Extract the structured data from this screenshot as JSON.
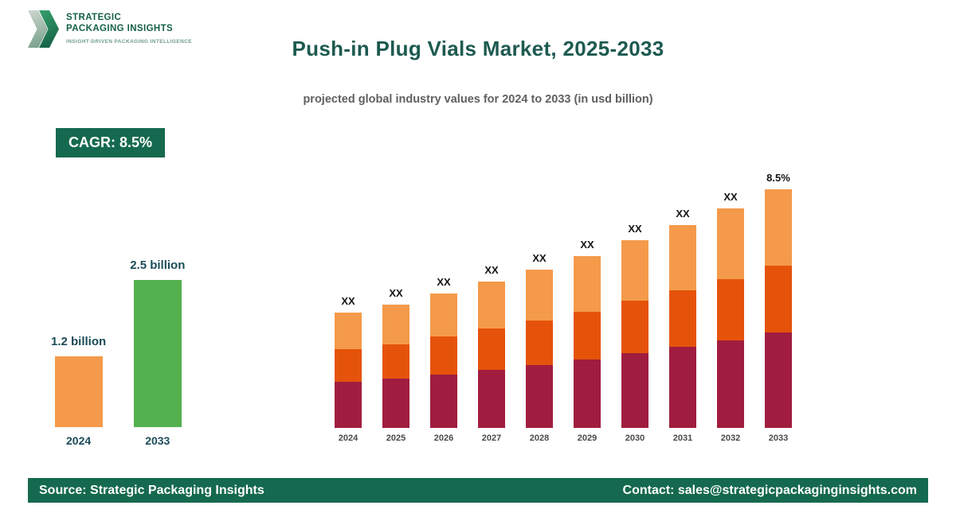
{
  "logo": {
    "name_line1": "STRATEGIC",
    "name_line2": "PACKAGING INSIGHTS",
    "tagline": "INSIGHT-DRIVEN PACKAGING INTELLIGENCE"
  },
  "header": {
    "title": "Push-in Plug Vials Market, 2025-2033",
    "subtitle": "projected global industry values for 2024 to 2033 (in usd billion)"
  },
  "cagr_badge": {
    "label": "CAGR: 8.5%"
  },
  "chart_data": [
    {
      "type": "bar",
      "title": "Market size 2024 vs 2033",
      "categories": [
        "2024",
        "2033"
      ],
      "values": [
        1.2,
        2.5
      ],
      "value_labels": [
        "1.2 billion",
        "2.5 billion"
      ],
      "bar_colors": [
        "#f49a4a",
        "#53b04e"
      ],
      "ylim": [
        0,
        2.6
      ],
      "unit": "usd billion",
      "grid": false,
      "legend": "none"
    },
    {
      "type": "bar",
      "subtype": "stacked",
      "title": "Push-in Plug Vials Market, 2024-2033 (values masked as XX)",
      "categories": [
        "2024",
        "2025",
        "2026",
        "2027",
        "2028",
        "2029",
        "2030",
        "2031",
        "2032",
        "2033"
      ],
      "bar_top_labels": [
        "XX",
        "XX",
        "XX",
        "XX",
        "XX",
        "XX",
        "XX",
        "XX",
        "XX",
        "8.5%"
      ],
      "series": [
        {
          "name": "segment-bottom",
          "color": "#a11d3f",
          "values": [
            0.48,
            0.52,
            0.56,
            0.61,
            0.66,
            0.72,
            0.78,
            0.85,
            0.92,
            1.0
          ]
        },
        {
          "name": "segment-middle",
          "color": "#e5530a",
          "values": [
            0.34,
            0.36,
            0.4,
            0.43,
            0.47,
            0.5,
            0.55,
            0.59,
            0.64,
            0.7
          ]
        },
        {
          "name": "segment-top",
          "color": "#f49a4a",
          "values": [
            0.38,
            0.42,
            0.45,
            0.49,
            0.53,
            0.58,
            0.63,
            0.68,
            0.74,
            0.8
          ]
        }
      ],
      "totals": [
        1.2,
        1.3,
        1.41,
        1.53,
        1.66,
        1.8,
        1.96,
        2.12,
        2.3,
        2.5
      ],
      "ylim": [
        0,
        2.7
      ],
      "unit": "usd billion",
      "grid": false,
      "legend": "none"
    }
  ],
  "footer": {
    "source": "Source: Strategic Packaging Insights",
    "contact": "Contact: sales@strategicpackaginginsights.com"
  },
  "colors": {
    "brand_green": "#15694e",
    "title_teal": "#1d5a50",
    "light_orange": "#f49a4a",
    "dark_orange": "#e5530a",
    "maroon": "#a11d3f",
    "green_bar": "#53b04e"
  }
}
